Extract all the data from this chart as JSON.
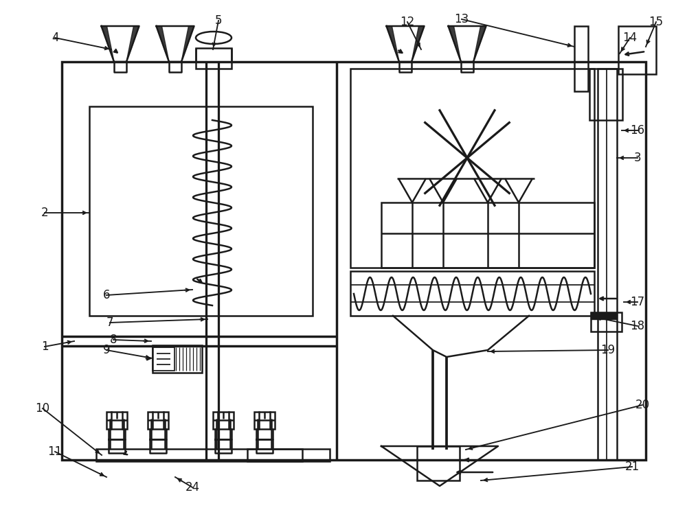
{
  "bg_color": "#ffffff",
  "line_color": "#1a1a1a",
  "lw": 1.8,
  "tlw": 2.5
}
